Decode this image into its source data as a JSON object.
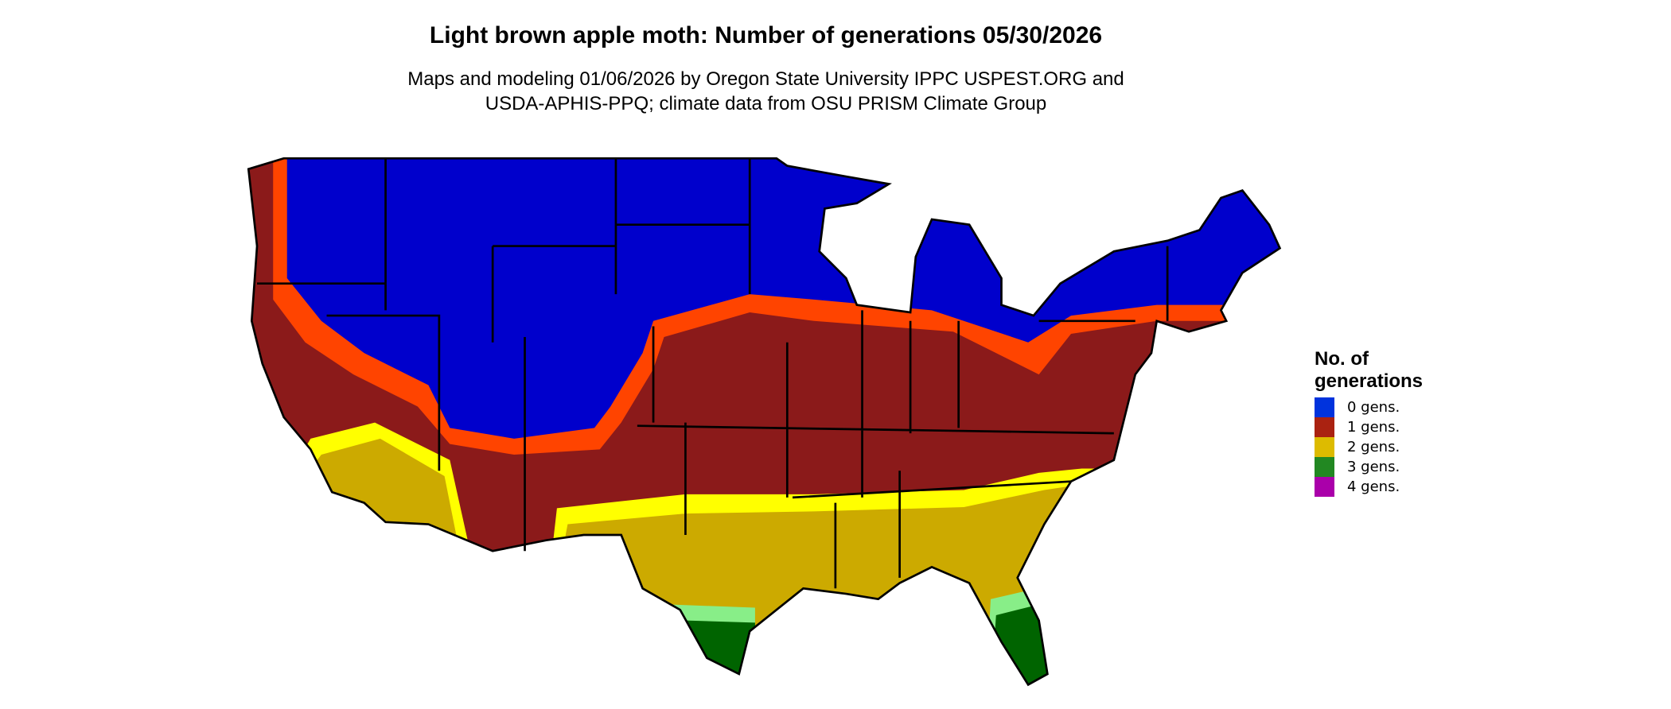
{
  "title": "Light brown apple moth: Number of generations 05/30/2026",
  "subtitle_line1": "Maps and modeling 01/06/2026 by Oregon State University IPPC USPEST.ORG and",
  "subtitle_line2": "USDA-APHIS-PPQ; climate data from OSU PRISM Climate Group",
  "legend": {
    "title_line1": "No. of",
    "title_line2": "generations",
    "items": [
      {
        "label": "0 gens.",
        "color": "#0033dd"
      },
      {
        "label": "1 gens.",
        "color": "#aa2211"
      },
      {
        "label": "2 gens.",
        "color": "#ddbb00"
      },
      {
        "label": "3 gens.",
        "color": "#228822"
      },
      {
        "label": "4 gens.",
        "color": "#aa00aa"
      }
    ]
  },
  "map_colors": {
    "zero": "#0000cc",
    "transition": "#ff4400",
    "one": "#8b1a1a",
    "two": "#ccaa00",
    "two_edge": "#ffff00",
    "three": "#006400",
    "three_edge": "#88ee88"
  }
}
